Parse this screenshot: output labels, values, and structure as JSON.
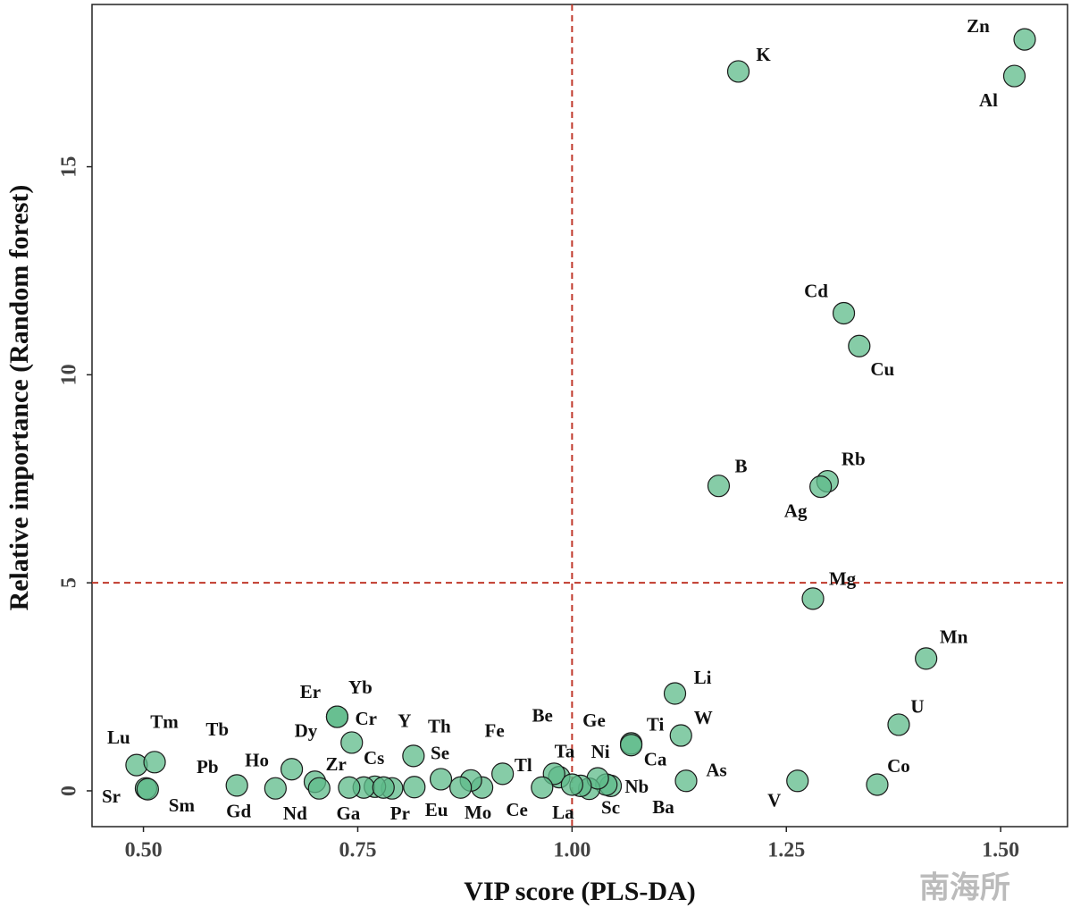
{
  "chart_data": {
    "type": "scatter",
    "x_label": "VIP score (PLS-DA)",
    "y_label": "Relative importance (Random forest)",
    "watermark": "南海所",
    "color": "#5dbb8a",
    "labels": [
      "Zn",
      "K",
      "Al",
      "Cd",
      "Cu",
      "Rb",
      "Ag",
      "B",
      "Mg",
      "Mn",
      "Li",
      "U",
      "W",
      "Ti",
      "Ca",
      "As",
      "V",
      "Co",
      "Ba",
      "Nb",
      "Sc",
      "Ni",
      "Ge",
      "Ta",
      "Be",
      "La",
      "Tl",
      "Fe",
      "Ce",
      "Mo",
      "Eu",
      "Se",
      "Y",
      "Th",
      "Pr",
      "Cs",
      "Zr",
      "Ga",
      "Cr",
      "Er",
      "Yb",
      "Dy",
      "Ho",
      "Nd",
      "Gd",
      "Pb",
      "Tb",
      "Lu",
      "Tm",
      "Sr",
      "Sm"
    ],
    "x": [
      1.528,
      1.194,
      1.516,
      1.317,
      1.335,
      1.298,
      1.29,
      1.171,
      1.281,
      1.413,
      1.12,
      1.381,
      1.127,
      1.069,
      1.069,
      1.133,
      1.263,
      1.356,
      1.045,
      1.04,
      1.02,
      1.03,
      1.01,
      0.985,
      0.979,
      1.0,
      0.965,
      0.919,
      0.895,
      0.882,
      0.87,
      0.847,
      0.815,
      0.816,
      0.79,
      0.77,
      0.757,
      0.74,
      0.743,
      0.726,
      0.726,
      0.7,
      0.673,
      0.654,
      0.609,
      0.705,
      0.78,
      0.492,
      0.513,
      0.503,
      0.505
    ],
    "values": [
      18.06,
      17.29,
      17.18,
      11.48,
      10.69,
      7.44,
      7.31,
      7.33,
      4.62,
      3.18,
      2.34,
      1.59,
      1.33,
      1.14,
      1.1,
      0.24,
      0.24,
      0.15,
      0.12,
      0.15,
      0.05,
      0.3,
      0.12,
      0.33,
      0.41,
      0.15,
      0.08,
      0.41,
      0.08,
      0.25,
      0.08,
      0.28,
      0.84,
      0.09,
      0.06,
      0.1,
      0.08,
      0.08,
      1.16,
      1.78,
      1.78,
      0.22,
      0.52,
      0.06,
      0.13,
      0.06,
      0.08,
      0.62,
      0.69,
      0.06,
      0.04
    ],
    "xlim": [
      0.44,
      1.578
    ],
    "ylim": [
      -0.86,
      18.9
    ],
    "xticks": [
      {
        "value": 0.5,
        "label": "0.50"
      },
      0.75,
      {
        "value": 1.0,
        "label": "1.00"
      },
      1.25,
      {
        "value": 1.5,
        "label": "1.50"
      }
    ],
    "yticks": [
      0,
      5,
      10,
      15
    ],
    "vlines": [
      1.0
    ],
    "hlines": [
      5
    ],
    "ref_color": "#c0392b"
  }
}
